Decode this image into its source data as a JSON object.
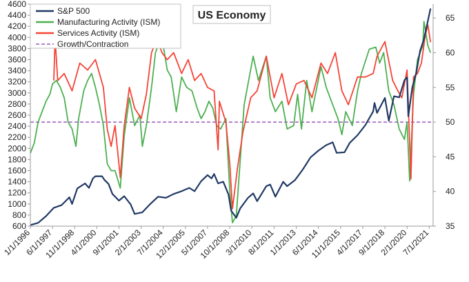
{
  "chart_data": {
    "type": "line",
    "title": "US Economy",
    "xlabel": "",
    "ylabel": "",
    "y2label": "",
    "x_range": [
      "1996-01-01",
      "2021-10-01"
    ],
    "ylim": [
      600,
      4600
    ],
    "y2lim": [
      35,
      67
    ],
    "y_ticks": [
      600,
      800,
      1000,
      1200,
      1400,
      1600,
      1800,
      2000,
      2200,
      2400,
      2600,
      2800,
      3000,
      3200,
      3400,
      3600,
      3800,
      4000,
      4200,
      4400,
      4600
    ],
    "y2_ticks": [
      35,
      40,
      45,
      50,
      55,
      60,
      65
    ],
    "x_ticks": [
      "1/1/1996",
      "6/1/1997",
      "11/1/1998",
      "4/1/2000",
      "9/1/2001",
      "2/1/2003",
      "7/1/2004",
      "12/1/2005",
      "5/1/2007",
      "10/1/2008",
      "3/1/2010",
      "8/1/2011",
      "1/1/2013",
      "6/1/2014",
      "11/1/2015",
      "4/1/2017",
      "9/1/2018",
      "2/1/2020",
      "7/1/2021"
    ],
    "x_tick_dates": [
      "1996-01-01",
      "1997-06-01",
      "1998-11-01",
      "2000-04-01",
      "2001-09-01",
      "2003-02-01",
      "2004-07-01",
      "2005-12-01",
      "2007-05-01",
      "2008-10-01",
      "2010-03-01",
      "2011-08-01",
      "2013-01-01",
      "2014-06-01",
      "2015-11-01",
      "2017-04-01",
      "2018-09-01",
      "2020-02-01",
      "2021-07-01"
    ],
    "grid": false,
    "legend_position": "top-left",
    "reference_line": {
      "name": "Growth/Contraction",
      "axis": "right",
      "value": 50,
      "color": "#9b59b6"
    },
    "series": [
      {
        "name": "S&P 500",
        "axis": "left",
        "color": "#1f3864",
        "points": [
          [
            "1996-01-01",
            620
          ],
          [
            "1996-07-01",
            660
          ],
          [
            "1997-01-01",
            780
          ],
          [
            "1997-07-01",
            930
          ],
          [
            "1998-01-01",
            980
          ],
          [
            "1998-07-01",
            1120
          ],
          [
            "1998-09-01",
            1000
          ],
          [
            "1999-01-01",
            1280
          ],
          [
            "1999-07-01",
            1370
          ],
          [
            "1999-10-01",
            1290
          ],
          [
            "2000-01-01",
            1460
          ],
          [
            "2000-03-01",
            1500
          ],
          [
            "2000-08-01",
            1500
          ],
          [
            "2000-10-01",
            1430
          ],
          [
            "2001-01-01",
            1360
          ],
          [
            "2001-04-01",
            1180
          ],
          [
            "2001-09-01",
            1060
          ],
          [
            "2002-01-01",
            1140
          ],
          [
            "2002-06-01",
            990
          ],
          [
            "2002-09-01",
            820
          ],
          [
            "2003-03-01",
            850
          ],
          [
            "2003-09-01",
            1000
          ],
          [
            "2004-03-01",
            1130
          ],
          [
            "2004-09-01",
            1110
          ],
          [
            "2005-03-01",
            1180
          ],
          [
            "2005-09-01",
            1230
          ],
          [
            "2006-03-01",
            1290
          ],
          [
            "2006-07-01",
            1230
          ],
          [
            "2006-12-01",
            1410
          ],
          [
            "2007-05-01",
            1520
          ],
          [
            "2007-08-01",
            1460
          ],
          [
            "2007-10-01",
            1540
          ],
          [
            "2008-01-01",
            1370
          ],
          [
            "2008-05-01",
            1400
          ],
          [
            "2008-09-01",
            1170
          ],
          [
            "2008-11-01",
            880
          ],
          [
            "2009-03-01",
            750
          ],
          [
            "2009-06-01",
            920
          ],
          [
            "2009-12-01",
            1110
          ],
          [
            "2010-04-01",
            1190
          ],
          [
            "2010-07-01",
            1050
          ],
          [
            "2011-02-01",
            1320
          ],
          [
            "2011-05-01",
            1350
          ],
          [
            "2011-09-01",
            1130
          ],
          [
            "2012-03-01",
            1400
          ],
          [
            "2012-06-01",
            1320
          ],
          [
            "2012-12-01",
            1430
          ],
          [
            "2013-06-01",
            1620
          ],
          [
            "2013-12-01",
            1840
          ],
          [
            "2014-06-01",
            1960
          ],
          [
            "2014-12-01",
            2060
          ],
          [
            "2015-05-01",
            2110
          ],
          [
            "2015-08-01",
            1920
          ],
          [
            "2016-02-01",
            1930
          ],
          [
            "2016-06-01",
            2100
          ],
          [
            "2016-12-01",
            2240
          ],
          [
            "2017-06-01",
            2420
          ],
          [
            "2017-12-01",
            2670
          ],
          [
            "2018-01-01",
            2820
          ],
          [
            "2018-03-01",
            2640
          ],
          [
            "2018-09-01",
            2910
          ],
          [
            "2018-12-01",
            2500
          ],
          [
            "2019-04-01",
            2940
          ],
          [
            "2019-08-01",
            2920
          ],
          [
            "2019-12-01",
            3230
          ],
          [
            "2020-02-01",
            3280
          ],
          [
            "2020-03-01",
            2580
          ],
          [
            "2020-06-01",
            3100
          ],
          [
            "2020-09-01",
            3360
          ],
          [
            "2020-12-01",
            3760
          ],
          [
            "2021-03-01",
            3970
          ],
          [
            "2021-06-01",
            4300
          ],
          [
            "2021-08-01",
            4520
          ]
        ]
      },
      {
        "name": "Manufacturing Activity (ISM)",
        "axis": "right",
        "color": "#4caf50",
        "points": [
          [
            "1996-01-01",
            45.5
          ],
          [
            "1996-04-01",
            47.0
          ],
          [
            "1996-07-01",
            50.0
          ],
          [
            "1996-10-01",
            51.5
          ],
          [
            "1997-01-01",
            53.0
          ],
          [
            "1997-04-01",
            54.0
          ],
          [
            "1997-06-01",
            55.5
          ],
          [
            "1997-09-01",
            56.0
          ],
          [
            "1997-12-01",
            55.0
          ],
          [
            "1998-03-01",
            53.5
          ],
          [
            "1998-06-01",
            50.0
          ],
          [
            "1998-09-01",
            49.0
          ],
          [
            "1998-12-01",
            46.5
          ],
          [
            "1999-02-01",
            50.5
          ],
          [
            "1999-06-01",
            54.5
          ],
          [
            "1999-09-01",
            56.0
          ],
          [
            "1999-12-01",
            57.0
          ],
          [
            "2000-03-01",
            55.0
          ],
          [
            "2000-06-01",
            52.5
          ],
          [
            "2000-09-01",
            49.5
          ],
          [
            "2000-12-01",
            44.0
          ],
          [
            "2001-03-01",
            43.0
          ],
          [
            "2001-06-01",
            43.0
          ],
          [
            "2001-10-01",
            40.5
          ],
          [
            "2002-01-01",
            48.0
          ],
          [
            "2002-05-01",
            53.5
          ],
          [
            "2002-09-01",
            49.5
          ],
          [
            "2003-01-01",
            51.0
          ],
          [
            "2003-03-01",
            46.5
          ],
          [
            "2003-06-01",
            49.5
          ],
          [
            "2003-10-01",
            55.0
          ],
          [
            "2004-01-01",
            60.0
          ],
          [
            "2004-04-01",
            61.5
          ],
          [
            "2004-07-01",
            61.0
          ],
          [
            "2004-10-01",
            57.5
          ],
          [
            "2005-01-01",
            56.5
          ],
          [
            "2005-05-01",
            51.5
          ],
          [
            "2005-09-01",
            56.5
          ],
          [
            "2006-01-01",
            55.0
          ],
          [
            "2006-05-01",
            54.5
          ],
          [
            "2006-09-01",
            52.0
          ],
          [
            "2006-12-01",
            50.5
          ],
          [
            "2007-03-01",
            51.5
          ],
          [
            "2007-06-01",
            53.0
          ],
          [
            "2007-09-01",
            52.0
          ],
          [
            "2007-12-01",
            49.5
          ],
          [
            "2008-03-01",
            49.0
          ],
          [
            "2008-07-01",
            50.5
          ],
          [
            "2008-10-01",
            40.0
          ],
          [
            "2008-12-01",
            35.5
          ],
          [
            "2009-03-01",
            36.5
          ],
          [
            "2009-06-01",
            44.5
          ],
          [
            "2009-09-01",
            52.5
          ],
          [
            "2009-12-01",
            55.5
          ],
          [
            "2010-04-01",
            59.5
          ],
          [
            "2010-08-01",
            56.0
          ],
          [
            "2011-02-01",
            59.5
          ],
          [
            "2011-05-01",
            53.5
          ],
          [
            "2011-09-01",
            51.5
          ],
          [
            "2012-02-01",
            53.0
          ],
          [
            "2012-06-01",
            49.0
          ],
          [
            "2012-11-01",
            49.5
          ],
          [
            "2013-02-01",
            54.0
          ],
          [
            "2013-05-01",
            49.0
          ],
          [
            "2013-09-01",
            56.0
          ],
          [
            "2014-01-01",
            51.5
          ],
          [
            "2014-08-01",
            58.0
          ],
          [
            "2014-12-01",
            55.0
          ],
          [
            "2015-05-01",
            52.5
          ],
          [
            "2015-09-01",
            50.5
          ],
          [
            "2015-12-01",
            48.2
          ],
          [
            "2016-03-01",
            51.5
          ],
          [
            "2016-08-01",
            49.5
          ],
          [
            "2016-12-01",
            54.5
          ],
          [
            "2017-03-01",
            57.0
          ],
          [
            "2017-09-01",
            60.5
          ],
          [
            "2018-02-01",
            60.8
          ],
          [
            "2018-05-01",
            58.5
          ],
          [
            "2018-08-01",
            60.0
          ],
          [
            "2018-12-01",
            54.5
          ],
          [
            "2019-04-01",
            52.5
          ],
          [
            "2019-08-01",
            49.0
          ],
          [
            "2019-12-01",
            47.5
          ],
          [
            "2020-02-01",
            50.0
          ],
          [
            "2020-04-01",
            41.5
          ],
          [
            "2020-07-01",
            54.0
          ],
          [
            "2020-10-01",
            59.0
          ],
          [
            "2021-02-01",
            61.0
          ],
          [
            "2021-03-01",
            64.5
          ],
          [
            "2021-06-01",
            61.0
          ],
          [
            "2021-08-01",
            60.0
          ]
        ]
      },
      {
        "name": "Services Activity (ISM)",
        "axis": "right",
        "color": "#f44336",
        "points": [
          [
            "1997-07-01",
            56.0
          ],
          [
            "1997-08-01",
            62.0
          ],
          [
            "1997-10-01",
            56.0
          ],
          [
            "1998-03-01",
            57.0
          ],
          [
            "1998-09-01",
            54.5
          ],
          [
            "1999-03-01",
            58.5
          ],
          [
            "1999-09-01",
            57.5
          ],
          [
            "2000-03-01",
            59.0
          ],
          [
            "2000-09-01",
            55.0
          ],
          [
            "2000-12-01",
            49.0
          ],
          [
            "2001-03-01",
            46.5
          ],
          [
            "2001-06-01",
            49.5
          ],
          [
            "2001-10-01",
            42.0
          ],
          [
            "2002-01-01",
            49.5
          ],
          [
            "2002-05-01",
            55.0
          ],
          [
            "2002-09-01",
            52.0
          ],
          [
            "2003-02-01",
            50.5
          ],
          [
            "2003-06-01",
            54.0
          ],
          [
            "2003-10-01",
            60.0
          ],
          [
            "2004-02-01",
            62.0
          ],
          [
            "2004-06-01",
            60.0
          ],
          [
            "2004-10-01",
            59.0
          ],
          [
            "2005-03-01",
            60.0
          ],
          [
            "2005-09-01",
            57.0
          ],
          [
            "2006-02-01",
            59.0
          ],
          [
            "2006-07-01",
            56.0
          ],
          [
            "2006-12-01",
            57.0
          ],
          [
            "2007-05-01",
            55.0
          ],
          [
            "2007-10-01",
            54.5
          ],
          [
            "2008-01-01",
            46.0
          ],
          [
            "2008-02-01",
            53.0
          ],
          [
            "2008-07-01",
            50.0
          ],
          [
            "2008-10-01",
            44.0
          ],
          [
            "2008-12-01",
            37.5
          ],
          [
            "2009-04-01",
            43.5
          ],
          [
            "2009-08-01",
            48.5
          ],
          [
            "2010-02-01",
            53.5
          ],
          [
            "2010-07-01",
            54.5
          ],
          [
            "2011-02-01",
            59.5
          ],
          [
            "2011-08-01",
            53.5
          ],
          [
            "2012-02-01",
            57.0
          ],
          [
            "2012-07-01",
            52.5
          ],
          [
            "2013-01-01",
            55.5
          ],
          [
            "2013-07-01",
            56.0
          ],
          [
            "2014-01-01",
            53.5
          ],
          [
            "2014-08-01",
            58.5
          ],
          [
            "2015-01-01",
            57.0
          ],
          [
            "2015-07-01",
            60.0
          ],
          [
            "2015-12-01",
            54.5
          ],
          [
            "2016-05-01",
            52.5
          ],
          [
            "2016-12-01",
            56.5
          ],
          [
            "2017-06-01",
            56.5
          ],
          [
            "2017-12-01",
            57.0
          ],
          [
            "2018-03-01",
            59.5
          ],
          [
            "2018-09-01",
            61.6
          ],
          [
            "2019-03-01",
            56.0
          ],
          [
            "2019-07-01",
            54.5
          ],
          [
            "2019-10-01",
            53.5
          ],
          [
            "2020-02-01",
            57.5
          ],
          [
            "2020-03-01",
            52.5
          ],
          [
            "2020-05-01",
            41.8
          ],
          [
            "2020-07-01",
            56.5
          ],
          [
            "2020-10-01",
            57.0
          ],
          [
            "2021-01-01",
            58.5
          ],
          [
            "2021-04-01",
            62.5
          ],
          [
            "2021-06-01",
            64.0
          ],
          [
            "2021-08-01",
            61.5
          ]
        ]
      }
    ]
  }
}
